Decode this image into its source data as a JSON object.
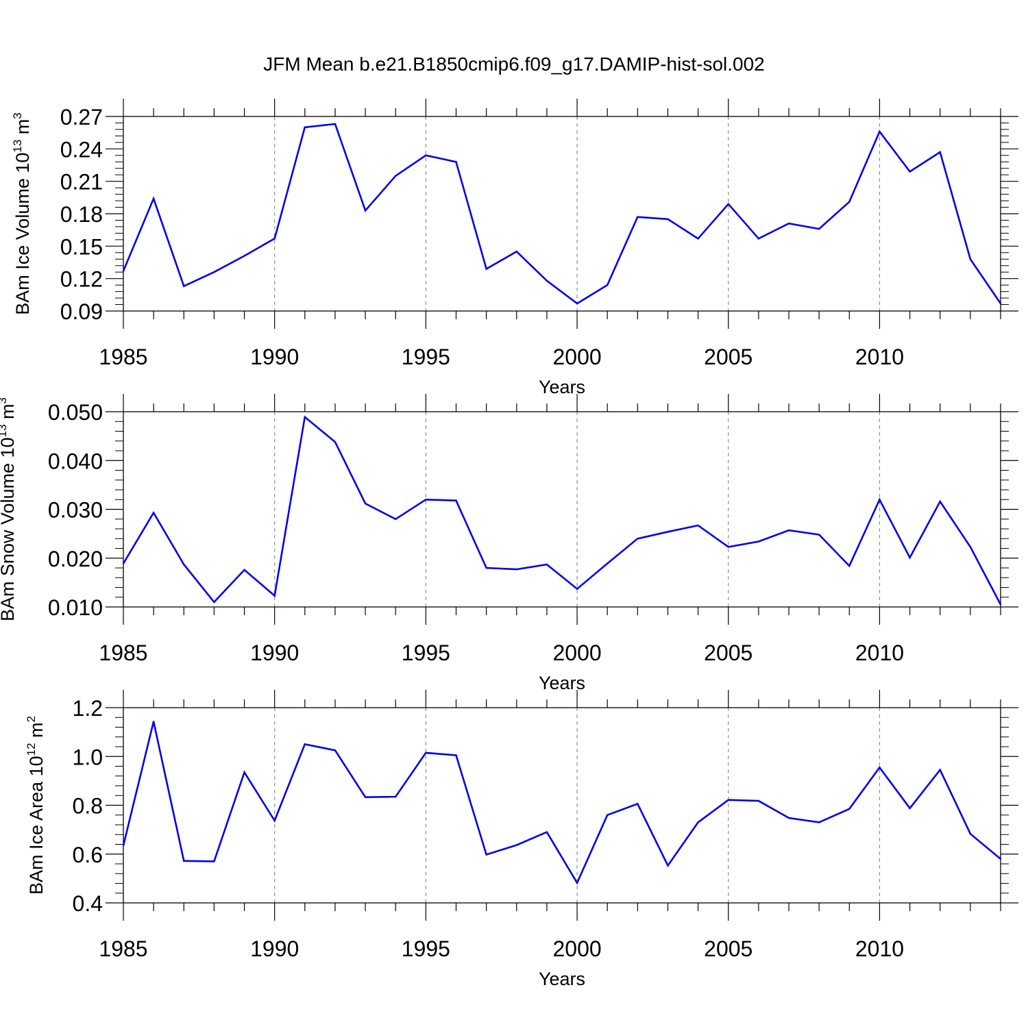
{
  "figure": {
    "title": "JFM Mean b.e21.B1850cmip6.f09_g17.DAMIP-hist-sol.002",
    "line_color": "#0000ee",
    "grid_color": "#8c8c8c"
  },
  "chart_data": [
    {
      "type": "line",
      "name": "ice-volume",
      "title": "",
      "ylabel_parts": {
        "main": "BAm Ice Volume 10",
        "sup1": "13",
        "mid": " m",
        "sup2": "3"
      },
      "xlabel": "Years",
      "xlim": [
        1985,
        2014
      ],
      "ylim": [
        0.09,
        0.27
      ],
      "xticks": [
        1985,
        1990,
        1995,
        2000,
        2005,
        2010
      ],
      "xtick_labels": [
        "1985",
        "1990",
        "1995",
        "2000",
        "2005",
        "2010"
      ],
      "yticks": [
        0.09,
        0.12,
        0.15,
        0.18,
        0.21,
        0.24,
        0.27
      ],
      "ytick_labels": [
        "0.09",
        "0.12",
        "0.15",
        "0.18",
        "0.21",
        "0.24",
        "0.27"
      ],
      "x": [
        1985,
        1986,
        1987,
        1988,
        1989,
        1990,
        1991,
        1992,
        1993,
        1994,
        1995,
        1996,
        1997,
        1998,
        1999,
        2000,
        2001,
        2002,
        2003,
        2004,
        2005,
        2006,
        2007,
        2008,
        2009,
        2010,
        2011,
        2012,
        2013,
        2014
      ],
      "y": [
        0.127,
        0.194,
        0.113,
        0.126,
        0.141,
        0.157,
        0.26,
        0.263,
        0.183,
        0.215,
        0.234,
        0.228,
        0.129,
        0.145,
        0.118,
        0.097,
        0.114,
        0.177,
        0.175,
        0.157,
        0.189,
        0.157,
        0.171,
        0.166,
        0.191,
        0.256,
        0.219,
        0.237,
        0.138,
        0.097
      ]
    },
    {
      "type": "line",
      "name": "snow-volume",
      "title": "",
      "ylabel_parts": {
        "main": "BAm Snow Volume 10",
        "sup1": "13",
        "mid": " m",
        "sup2": "3"
      },
      "xlabel": "Years",
      "xlim": [
        1985,
        2014
      ],
      "ylim": [
        0.01,
        0.05
      ],
      "xticks": [
        1985,
        1990,
        1995,
        2000,
        2005,
        2010
      ],
      "xtick_labels": [
        "1985",
        "1990",
        "1995",
        "2000",
        "2005",
        "2010"
      ],
      "yticks": [
        0.01,
        0.02,
        0.03,
        0.04,
        0.05
      ],
      "ytick_labels": [
        "0.010",
        "0.020",
        "0.030",
        "0.040",
        "0.050"
      ],
      "x": [
        1985,
        1986,
        1987,
        1988,
        1989,
        1990,
        1991,
        1992,
        1993,
        1994,
        1995,
        1996,
        1997,
        1998,
        1999,
        2000,
        2001,
        2002,
        2003,
        2004,
        2005,
        2006,
        2007,
        2008,
        2009,
        2010,
        2011,
        2012,
        2013,
        2014
      ],
      "y": [
        0.0189,
        0.0293,
        0.0187,
        0.011,
        0.0176,
        0.0123,
        0.0489,
        0.0438,
        0.0312,
        0.028,
        0.032,
        0.0318,
        0.018,
        0.0177,
        0.0187,
        0.0137,
        0.0189,
        0.024,
        0.0254,
        0.0267,
        0.0223,
        0.0234,
        0.0257,
        0.0248,
        0.0184,
        0.032,
        0.0201,
        0.0316,
        0.0223,
        0.0105
      ]
    },
    {
      "type": "line",
      "name": "ice-area",
      "title": "",
      "ylabel_parts": {
        "main": "BAm Ice Area 10",
        "sup1": "12",
        "mid": " m",
        "sup2": "2"
      },
      "xlabel": "Years",
      "xlim": [
        1985,
        2014
      ],
      "ylim": [
        0.4,
        1.2
      ],
      "xticks": [
        1985,
        1990,
        1995,
        2000,
        2005,
        2010
      ],
      "xtick_labels": [
        "1985",
        "1990",
        "1995",
        "2000",
        "2005",
        "2010"
      ],
      "yticks": [
        0.4,
        0.6,
        0.8,
        1.0,
        1.2
      ],
      "ytick_labels": [
        "0.4",
        "0.6",
        "0.8",
        "1.0",
        "1.2"
      ],
      "x": [
        1985,
        1986,
        1987,
        1988,
        1989,
        1990,
        1991,
        1992,
        1993,
        1994,
        1995,
        1996,
        1997,
        1998,
        1999,
        2000,
        2001,
        2002,
        2003,
        2004,
        2005,
        2006,
        2007,
        2008,
        2009,
        2010,
        2011,
        2012,
        2013,
        2014
      ],
      "y": [
        0.635,
        1.143,
        0.572,
        0.57,
        0.935,
        0.737,
        1.05,
        1.025,
        0.833,
        0.835,
        1.015,
        1.005,
        0.598,
        0.637,
        0.69,
        0.482,
        0.76,
        0.806,
        0.553,
        0.73,
        0.822,
        0.818,
        0.748,
        0.73,
        0.785,
        0.955,
        0.788,
        0.945,
        0.683,
        0.58
      ]
    }
  ]
}
